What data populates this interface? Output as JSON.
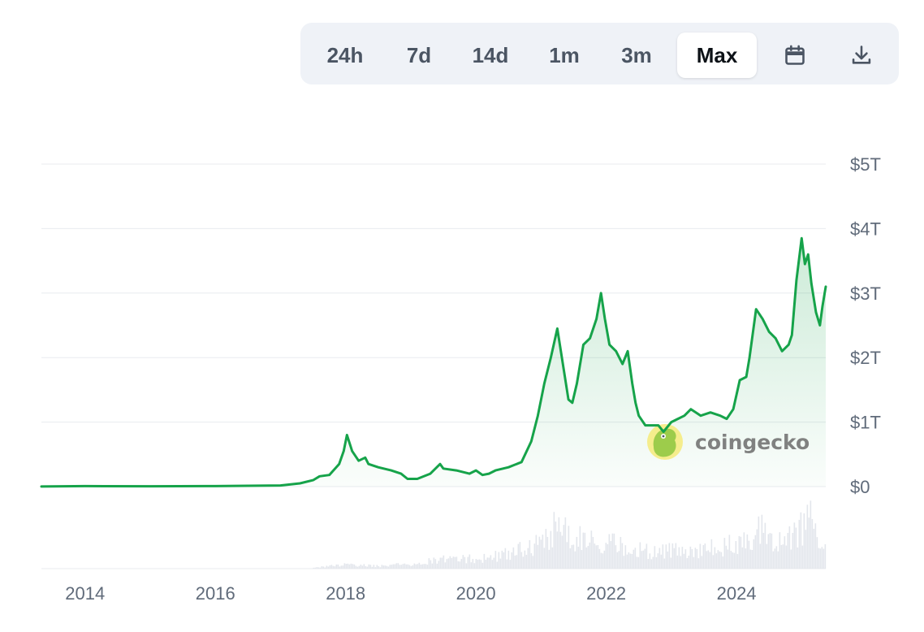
{
  "toolbar": {
    "ranges": [
      "24h",
      "7d",
      "14d",
      "1m",
      "3m",
      "Max"
    ],
    "active_range": "Max",
    "calendar_icon": "calendar-icon",
    "download_icon": "download-icon"
  },
  "watermark": {
    "text": "coingecko",
    "logo": "coingecko-gecko-logo"
  },
  "colors": {
    "line": "#16a34a",
    "area_top": "#16a34a",
    "grid": "#e8ebef",
    "volume": "#e3e6ec",
    "toolbar_bg": "#eff2f7",
    "axis_text": "#606b7a"
  },
  "chart_data": {
    "type": "area",
    "title": "",
    "xlabel": "",
    "ylabel": "",
    "ylim": [
      0,
      5
    ],
    "y_unit": "T",
    "xlim": [
      2013.33,
      2025.37
    ],
    "x_tick_values": [
      2014,
      2016,
      2018,
      2020,
      2022,
      2024
    ],
    "x_tick_labels": [
      "2014",
      "2016",
      "2018",
      "2020",
      "2022",
      "2024"
    ],
    "y_tick_values": [
      0,
      1,
      2,
      3,
      4,
      5
    ],
    "y_tick_labels": [
      "$0",
      "$1T",
      "$2T",
      "$3T",
      "$4T",
      "$5T"
    ],
    "grid": true,
    "legend": "none",
    "series": [
      {
        "values_unit": "trillion USD",
        "x": [
          2013.33,
          2014.0,
          2015.0,
          2016.0,
          2017.0,
          2017.3,
          2017.5,
          2017.6,
          2017.75,
          2017.9,
          2017.97,
          2018.02,
          2018.1,
          2018.2,
          2018.3,
          2018.35,
          2018.5,
          2018.7,
          2018.85,
          2018.95,
          2019.1,
          2019.3,
          2019.45,
          2019.5,
          2019.7,
          2019.9,
          2020.0,
          2020.1,
          2020.2,
          2020.3,
          2020.5,
          2020.7,
          2020.85,
          2020.95,
          2021.05,
          2021.15,
          2021.25,
          2021.35,
          2021.42,
          2021.48,
          2021.55,
          2021.65,
          2021.75,
          2021.85,
          2021.92,
          2021.98,
          2022.05,
          2022.15,
          2022.25,
          2022.33,
          2022.4,
          2022.45,
          2022.5,
          2022.6,
          2022.7,
          2022.8,
          2022.88,
          2023.0,
          2023.1,
          2023.2,
          2023.3,
          2023.45,
          2023.6,
          2023.75,
          2023.85,
          2023.95,
          2024.05,
          2024.15,
          2024.2,
          2024.3,
          2024.4,
          2024.5,
          2024.6,
          2024.7,
          2024.8,
          2024.85,
          2024.92,
          2025.0,
          2025.05,
          2025.1,
          2025.15,
          2025.22,
          2025.28,
          2025.32,
          2025.37
        ],
        "values": [
          0.001,
          0.008,
          0.005,
          0.007,
          0.018,
          0.05,
          0.1,
          0.16,
          0.18,
          0.35,
          0.55,
          0.8,
          0.55,
          0.4,
          0.45,
          0.35,
          0.3,
          0.25,
          0.2,
          0.12,
          0.12,
          0.2,
          0.35,
          0.28,
          0.25,
          0.2,
          0.25,
          0.18,
          0.2,
          0.25,
          0.3,
          0.38,
          0.7,
          1.1,
          1.6,
          2.0,
          2.45,
          1.8,
          1.35,
          1.3,
          1.6,
          2.2,
          2.3,
          2.6,
          3.0,
          2.6,
          2.2,
          2.1,
          1.9,
          2.1,
          1.6,
          1.3,
          1.1,
          0.95,
          0.95,
          0.95,
          0.85,
          1.0,
          1.05,
          1.1,
          1.2,
          1.1,
          1.15,
          1.1,
          1.05,
          1.2,
          1.65,
          1.7,
          2.0,
          2.75,
          2.6,
          2.4,
          2.3,
          2.1,
          2.2,
          2.35,
          3.2,
          3.85,
          3.45,
          3.6,
          3.15,
          2.7,
          2.5,
          2.8,
          3.1
        ]
      }
    ],
    "volume_series": {
      "x": [
        2017.5,
        2018.0,
        2018.5,
        2019.0,
        2019.5,
        2020.0,
        2020.5,
        2020.9,
        2021.1,
        2021.3,
        2021.5,
        2021.8,
        2022.1,
        2022.4,
        2022.7,
        2023.0,
        2023.4,
        2023.8,
        2024.1,
        2024.3,
        2024.7,
        2024.9,
        2025.1,
        2025.3
      ],
      "values": [
        0.02,
        0.08,
        0.05,
        0.1,
        0.2,
        0.2,
        0.3,
        0.5,
        0.7,
        0.95,
        0.6,
        0.55,
        0.5,
        0.45,
        0.35,
        0.35,
        0.4,
        0.45,
        0.55,
        0.8,
        0.5,
        0.75,
        1.0,
        0.5
      ]
    }
  }
}
